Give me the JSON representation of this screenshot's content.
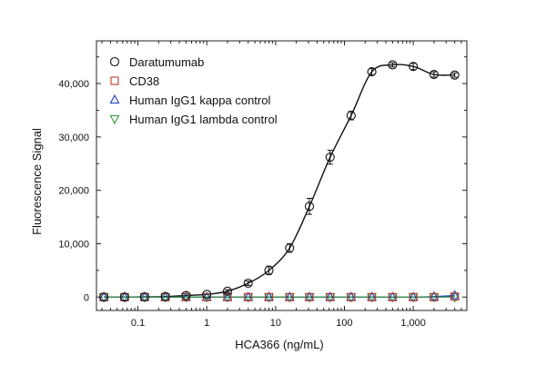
{
  "chart_data": {
    "type": "scatter",
    "xlabel": "HCA366 (ng/mL)",
    "ylabel": "Fluorescence Signal",
    "xscale": "log",
    "xlim": [
      0.025,
      6000
    ],
    "ylim": [
      -2500,
      48000
    ],
    "x_ticks": [
      0.1,
      1,
      10,
      100,
      1000
    ],
    "x_tick_labels": [
      "0.1",
      "1",
      "10",
      "100",
      "1,000"
    ],
    "y_ticks": [
      0,
      10000,
      20000,
      30000,
      40000
    ],
    "y_tick_labels": [
      "0",
      "10,000",
      "20,000",
      "30,000",
      "40,000"
    ],
    "grid": false,
    "legend_position": "top-left",
    "fit_curve": "Daratumumab",
    "series": [
      {
        "name": "Daratumumab",
        "marker": "circle",
        "color": "#111111",
        "x": [
          0.032,
          0.064,
          0.125,
          0.25,
          0.5,
          1,
          2,
          4,
          8,
          16,
          31,
          62,
          125,
          250,
          500,
          1000,
          2000,
          4000
        ],
        "y": [
          0,
          0,
          50,
          100,
          300,
          500,
          1100,
          2600,
          5000,
          9200,
          17000,
          26200,
          34000,
          42200,
          43500,
          43200,
          41700,
          41600
        ],
        "err": [
          0,
          0,
          0,
          0,
          0,
          0,
          300,
          400,
          800,
          800,
          1500,
          1300,
          800,
          600,
          400,
          600,
          500,
          400
        ]
      },
      {
        "name": "CD38",
        "marker": "square",
        "color": "#c0392b",
        "x": [
          0.032,
          0.064,
          0.125,
          0.25,
          0.5,
          1,
          2,
          4,
          8,
          16,
          31,
          62,
          125,
          250,
          500,
          1000,
          2000,
          4000
        ],
        "y": [
          0,
          0,
          0,
          0,
          0,
          0,
          0,
          0,
          0,
          0,
          0,
          0,
          0,
          0,
          0,
          0,
          0,
          100
        ],
        "err": []
      },
      {
        "name": "Human IgG1 kappa control",
        "marker": "triangle-up",
        "color": "#1f3fbf",
        "x": [
          0.032,
          0.064,
          0.125,
          0.25,
          0.5,
          1,
          2,
          4,
          8,
          16,
          31,
          62,
          125,
          250,
          500,
          1000,
          2000,
          4000
        ],
        "y": [
          0,
          0,
          0,
          0,
          0,
          0,
          0,
          0,
          0,
          0,
          0,
          0,
          0,
          0,
          0,
          0,
          100,
          300
        ],
        "err": []
      },
      {
        "name": "Human IgG1 lambda control",
        "marker": "triangle-down",
        "color": "#2e9a3e",
        "x": [
          0.032,
          0.064,
          0.125,
          0.25,
          0.5,
          1,
          2,
          4,
          8,
          16,
          31,
          62,
          125,
          250,
          500,
          1000,
          2000,
          4000
        ],
        "y": [
          0,
          0,
          0,
          0,
          0,
          0,
          0,
          0,
          0,
          0,
          0,
          0,
          0,
          0,
          0,
          0,
          0,
          0
        ],
        "err": []
      }
    ]
  }
}
